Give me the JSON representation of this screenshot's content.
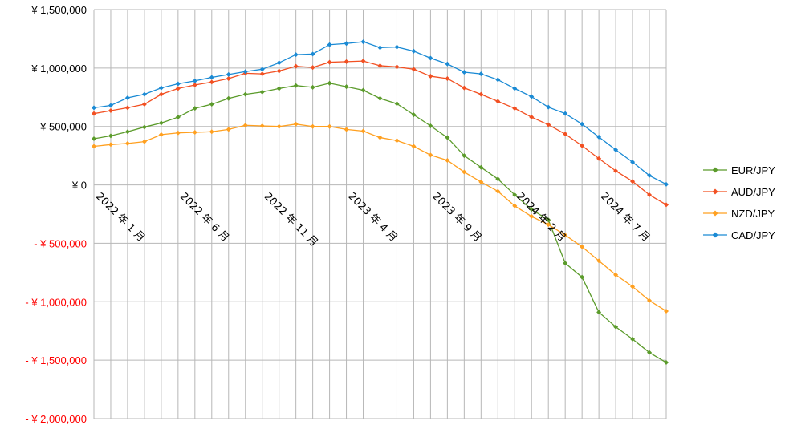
{
  "chart_data": {
    "type": "line",
    "categories": [
      "2022年1月",
      "2022年2月",
      "2022年3月",
      "2022年4月",
      "2022年5月",
      "2022年6月",
      "2022年7月",
      "2022年8月",
      "2022年9月",
      "2022年10月",
      "2022年11月",
      "2022年12月",
      "2023年1月",
      "2023年2月",
      "2023年3月",
      "2023年4月",
      "2023年5月",
      "2023年6月",
      "2023年7月",
      "2023年8月",
      "2023年9月",
      "2023年10月",
      "2023年11月",
      "2023年12月",
      "2024年1月",
      "2024年2月",
      "2024年3月",
      "2024年4月",
      "2024年5月",
      "2024年6月",
      "2024年7月",
      "2024年8月",
      "2024年9月",
      "2024年10月",
      "2024年11月"
    ],
    "x_tick_labels": [
      {
        "index": 0,
        "label": "2022 年 1 月"
      },
      {
        "index": 5,
        "label": "2022 年 6 月"
      },
      {
        "index": 10,
        "label": "2022 年 11 月"
      },
      {
        "index": 15,
        "label": "2023 年 4 月"
      },
      {
        "index": 20,
        "label": "2023 年 9 月"
      },
      {
        "index": 25,
        "label": "2024 年 2 月"
      },
      {
        "index": 30,
        "label": "2024 年 7 月"
      }
    ],
    "y_ticks": [
      {
        "value": 1500000,
        "label": "¥ 1,500,000",
        "negative": false
      },
      {
        "value": 1000000,
        "label": "¥ 1,000,000",
        "negative": false
      },
      {
        "value": 500000,
        "label": "¥ 500,000",
        "negative": false
      },
      {
        "value": 0,
        "label": "¥ 0",
        "negative": false
      },
      {
        "value": -500000,
        "label": "- ¥ 500,000",
        "negative": true
      },
      {
        "value": -1000000,
        "label": "- ¥ 1,000,000",
        "negative": true
      },
      {
        "value": -1500000,
        "label": "- ¥ 1,500,000",
        "negative": true
      },
      {
        "value": -2000000,
        "label": "- ¥ 2,000,000",
        "negative": true
      }
    ],
    "ylim": [
      -2000000,
      1500000
    ],
    "grid": true,
    "legend_position": "right",
    "negative_label_color": "#ff0000",
    "series": [
      {
        "name": "EUR/JPY",
        "color": "#5b9b2b",
        "values": [
          395000,
          420000,
          455000,
          495000,
          530000,
          580000,
          655000,
          690000,
          740000,
          775000,
          795000,
          825000,
          850000,
          835000,
          870000,
          840000,
          810000,
          740000,
          695000,
          600000,
          505000,
          405000,
          250000,
          150000,
          50000,
          -85000,
          -210000,
          -300000,
          -670000,
          -790000,
          -1090000,
          -1215000,
          -1320000,
          -1435000,
          -1520000
        ]
      },
      {
        "name": "AUD/JPY",
        "color": "#f25022",
        "values": [
          610000,
          635000,
          660000,
          690000,
          775000,
          825000,
          855000,
          880000,
          910000,
          955000,
          950000,
          975000,
          1015000,
          1005000,
          1050000,
          1055000,
          1060000,
          1020000,
          1010000,
          990000,
          930000,
          910000,
          830000,
          775000,
          715000,
          655000,
          580000,
          515000,
          435000,
          335000,
          225000,
          120000,
          30000,
          -85000,
          -170000
        ]
      },
      {
        "name": "NZD/JPY",
        "color": "#ffa020",
        "values": [
          330000,
          345000,
          355000,
          370000,
          430000,
          445000,
          450000,
          455000,
          475000,
          510000,
          505000,
          500000,
          520000,
          500000,
          500000,
          475000,
          460000,
          405000,
          380000,
          330000,
          255000,
          210000,
          110000,
          25000,
          -55000,
          -180000,
          -270000,
          -340000,
          -430000,
          -530000,
          -650000,
          -770000,
          -870000,
          -990000,
          -1080000
        ]
      },
      {
        "name": "CAD/JPY",
        "color": "#1a8ad4",
        "values": [
          660000,
          680000,
          745000,
          775000,
          830000,
          865000,
          890000,
          920000,
          945000,
          970000,
          990000,
          1045000,
          1115000,
          1120000,
          1200000,
          1210000,
          1225000,
          1175000,
          1180000,
          1145000,
          1085000,
          1035000,
          965000,
          950000,
          900000,
          825000,
          755000,
          665000,
          610000,
          520000,
          410000,
          300000,
          195000,
          80000,
          5000
        ]
      }
    ]
  }
}
